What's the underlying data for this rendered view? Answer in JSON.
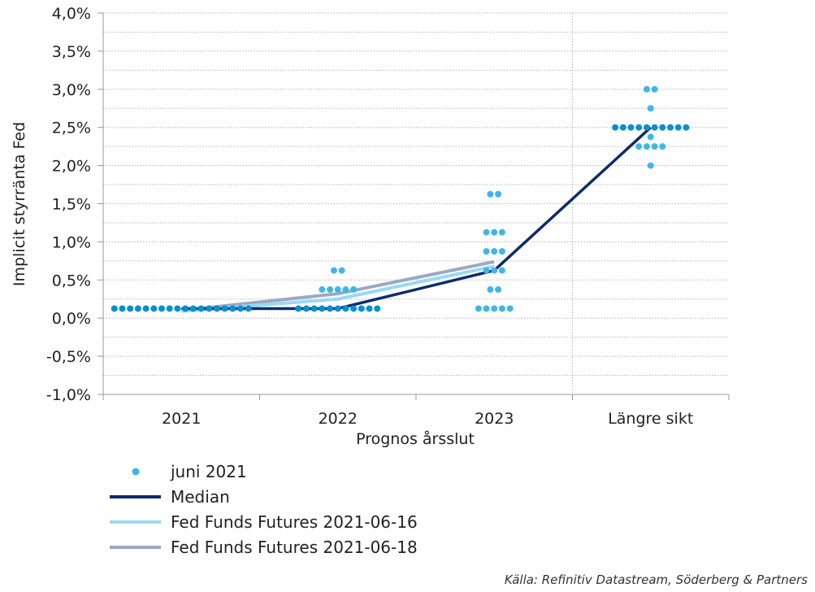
{
  "chart_data": {
    "type": "scatter",
    "ylabel": "Implicit styrränta Fed",
    "xlabel": "Prognos årsslut",
    "categories": [
      "2021",
      "2022",
      "2023",
      "Längre sikt"
    ],
    "ylim": [
      -1.0,
      4.0
    ],
    "yticks": [
      "4,0%",
      "3,5%",
      "3,0%",
      "2,5%",
      "2,0%",
      "1,5%",
      "1,0%",
      "0,5%",
      "0,0%",
      "-0,5%",
      "-1,0%"
    ],
    "ytick_values": [
      4.0,
      3.5,
      3.0,
      2.5,
      2.0,
      1.5,
      1.0,
      0.5,
      0.0,
      -0.5,
      -1.0
    ],
    "dots": {
      "name": "juni 2021",
      "color": "#41b6e6",
      "emphasis_color": "#0a8fd0",
      "groups": [
        {
          "category": "2021",
          "points": [
            {
              "value": 0.125,
              "count": 18
            }
          ]
        },
        {
          "category": "2022",
          "points": [
            {
              "value": 0.625,
              "count": 2
            },
            {
              "value": 0.375,
              "count": 5
            },
            {
              "value": 0.125,
              "count": 11
            }
          ]
        },
        {
          "category": "2023",
          "points": [
            {
              "value": 1.625,
              "count": 2
            },
            {
              "value": 1.125,
              "count": 3
            },
            {
              "value": 0.875,
              "count": 3
            },
            {
              "value": 0.625,
              "count": 3
            },
            {
              "value": 0.375,
              "count": 2
            },
            {
              "value": 0.125,
              "count": 5
            }
          ]
        },
        {
          "category": "Längre sikt",
          "points": [
            {
              "value": 3.0,
              "count": 2
            },
            {
              "value": 2.75,
              "count": 1
            },
            {
              "value": 2.5,
              "count": 10
            },
            {
              "value": 2.375,
              "count": 1
            },
            {
              "value": 2.25,
              "count": 4
            },
            {
              "value": 2.0,
              "count": 1
            }
          ]
        }
      ]
    },
    "series": [
      {
        "name": "Median",
        "color": "#0c2c6b",
        "x": [
          "2021",
          "2022",
          "2023",
          "Längre sikt"
        ],
        "values": [
          0.125,
          0.125,
          0.625,
          2.5
        ]
      },
      {
        "name": "Fed Funds Futures 2021-06-16",
        "color": "#99d9f5",
        "x": [
          "2021",
          "2022",
          "2023"
        ],
        "values": [
          0.09,
          0.25,
          0.68
        ]
      },
      {
        "name": "Fed Funds Futures 2021-06-18",
        "color": "#9ba8c6",
        "x": [
          "2021",
          "2022",
          "2023"
        ],
        "values": [
          0.1,
          0.32,
          0.74
        ]
      }
    ],
    "grid": "horizontal dotted",
    "separator_before": "Längre sikt",
    "legend_position": "bottom-left",
    "source": "Källa: Refinitiv Datastream, Söderberg & Partners"
  }
}
